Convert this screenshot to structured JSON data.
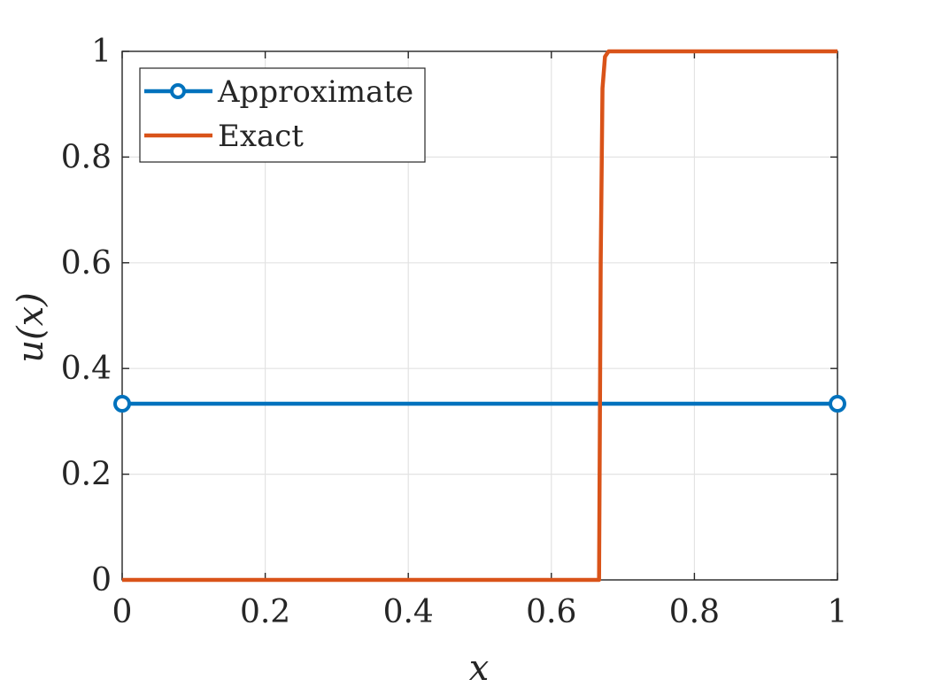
{
  "chart_data": {
    "type": "line",
    "title": "",
    "xlabel": "x",
    "ylabel": "u(x)",
    "xlim": [
      0,
      1
    ],
    "ylim": [
      0,
      1
    ],
    "xticks": [
      0,
      0.2,
      0.4,
      0.6,
      0.8,
      1
    ],
    "xtick_labels": [
      "0",
      "0.2",
      "0.4",
      "0.6",
      "0.8",
      "1"
    ],
    "yticks": [
      0,
      0.2,
      0.4,
      0.6,
      0.8,
      1
    ],
    "ytick_labels": [
      "0",
      "0.2",
      "0.4",
      "0.6",
      "0.8",
      "1"
    ],
    "grid": true,
    "legend_position": "top-left",
    "series": [
      {
        "name": "Approximate",
        "color": "#0072BD",
        "marker": "circle",
        "x": [
          0,
          1
        ],
        "y": [
          0.3333,
          0.3333
        ]
      },
      {
        "name": "Exact",
        "color": "#D95319",
        "marker": "none",
        "x": [
          0,
          0.6667,
          0.669,
          0.6715,
          0.675,
          0.68,
          1
        ],
        "y": [
          0,
          0,
          0.6,
          0.93,
          0.99,
          1,
          1
        ]
      }
    ]
  }
}
